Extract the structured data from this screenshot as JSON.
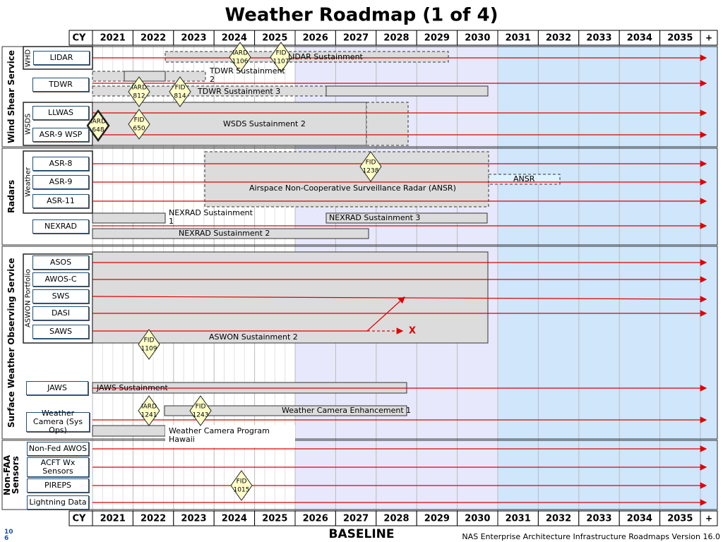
{
  "title": "Weather Roadmap (1 of 4)",
  "header": {
    "cy": "CY",
    "years": [
      "2021",
      "2022",
      "2023",
      "2024",
      "2025",
      "2026",
      "2027",
      "2028",
      "2029",
      "2030",
      "2031",
      "2032",
      "2033",
      "2034",
      "2035"
    ],
    "plus": "+"
  },
  "sections": [
    "Wind Shear Service",
    "Radars",
    "Surface Weather Observing Service",
    "Non-FAA Sensors"
  ],
  "groups": [
    "WHD",
    "WSDS",
    "Weather",
    "ASWON Portfolio"
  ],
  "systems": [
    "LIDAR",
    "TDWR",
    "LLWAS",
    "ASR-9 WSP",
    "ASR-8",
    "ASR-9",
    "ASR-11",
    "NEXRAD",
    "ASOS",
    "AWOS-C",
    "SWS",
    "DASI",
    "SAWS",
    "JAWS",
    "Weather Camera (Sys Ops)",
    "Non-Fed AWOS",
    "ACFT Wx Sensors",
    "PIREPS",
    "Lightning Data"
  ],
  "programs": [
    "LIDAR Sustainment",
    "TDWR Sustainment 2",
    "TDWR Sustainment 3",
    "WSDS Sustainment 2",
    "Airspace Non-Cooperative Surveillance Radar (ANSR)",
    "ANSR",
    "NEXRAD Sustainment 1",
    "NEXRAD Sustainment 3",
    "NEXRAD Sustainment 2",
    "ASWON Sustainment 2",
    "JAWS Sustainment",
    "Weather Camera Enhancement 1",
    "Weather Camera Program Hawaii"
  ],
  "decisions": [
    {
      "label": "IARD",
      "number": "1106"
    },
    {
      "label": "FID",
      "number": "1107"
    },
    {
      "label": "IARD",
      "number": "812"
    },
    {
      "label": "FID",
      "number": "814"
    },
    {
      "label": "IARD",
      "number": "648"
    },
    {
      "label": "FID",
      "number": "650"
    },
    {
      "label": "FID",
      "number": "1238"
    },
    {
      "label": "FID",
      "number": "1109"
    },
    {
      "label": "IARD",
      "number": "1241"
    },
    {
      "label": "FID",
      "number": "1243"
    },
    {
      "label": "FID",
      "number": "1015"
    }
  ],
  "end_mark": "X",
  "footer": {
    "page": "106",
    "center": "BASELINE",
    "right": "NAS Enterprise Architecture Infrastructure Roadmaps Version 16.0"
  }
}
